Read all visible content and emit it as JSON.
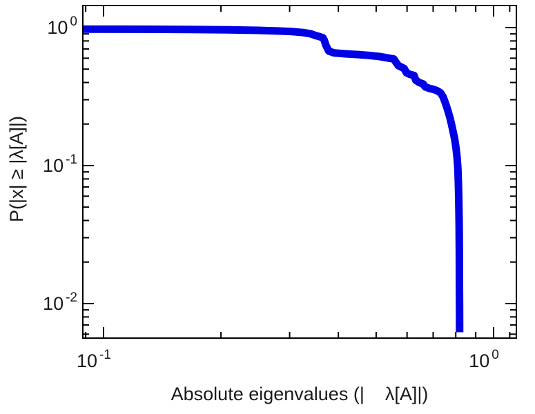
{
  "figure": {
    "background": "#ffffff",
    "text_color": "#1a1a1a",
    "frame_color": "#000000"
  },
  "chart_data": {
    "type": "line",
    "subtype": "empirical-ccdf",
    "scale": "log-log",
    "title": "",
    "xlabel": "Absolute eigenvalues (|    λ[A]|)",
    "ylabel": "P(|x| ≥ |λ[A]|)",
    "grid": false,
    "legend": null,
    "xlim": [
      0.0885,
      1.144
    ],
    "ylim": [
      0.00562,
      1.445
    ],
    "x_major_ticks": [
      {
        "value": 0.1,
        "base": "10",
        "exp": "-1"
      },
      {
        "value": 1.0,
        "base": "10",
        "exp": "0"
      }
    ],
    "x_minor_ticks": [
      0.09,
      0.2,
      0.3,
      0.4,
      0.5,
      0.6,
      0.7,
      0.8,
      0.9,
      1.1
    ],
    "y_major_ticks": [
      {
        "value": 1.0,
        "base": "10",
        "exp": "0"
      },
      {
        "value": 0.1,
        "base": "10",
        "exp": "-1"
      },
      {
        "value": 0.01,
        "base": "10",
        "exp": "-2"
      }
    ],
    "y_minor_ticks": [
      0.9,
      0.8,
      0.7,
      0.6,
      0.5,
      0.4,
      0.3,
      0.2,
      0.09,
      0.08,
      0.07,
      0.06,
      0.05,
      0.04,
      0.03,
      0.02,
      0.009,
      0.008,
      0.007,
      0.006
    ],
    "series": [
      {
        "name": "ccdf-absolute-eigenvalues",
        "color": "#0000e6",
        "line_width": 11,
        "points": [
          [
            0.0885,
            0.975
          ],
          [
            0.13,
            0.972
          ],
          [
            0.17,
            0.968
          ],
          [
            0.21,
            0.962
          ],
          [
            0.25,
            0.955
          ],
          [
            0.28,
            0.945
          ],
          [
            0.305,
            0.935
          ],
          [
            0.325,
            0.92
          ],
          [
            0.34,
            0.9
          ],
          [
            0.35,
            0.875
          ],
          [
            0.358,
            0.86
          ],
          [
            0.365,
            0.845
          ],
          [
            0.368,
            0.81
          ],
          [
            0.372,
            0.74
          ],
          [
            0.378,
            0.675
          ],
          [
            0.39,
            0.655
          ],
          [
            0.42,
            0.645
          ],
          [
            0.45,
            0.637
          ],
          [
            0.48,
            0.628
          ],
          [
            0.51,
            0.617
          ],
          [
            0.535,
            0.603
          ],
          [
            0.555,
            0.592
          ],
          [
            0.562,
            0.56
          ],
          [
            0.57,
            0.53
          ],
          [
            0.578,
            0.52
          ],
          [
            0.59,
            0.505
          ],
          [
            0.598,
            0.47
          ],
          [
            0.61,
            0.458
          ],
          [
            0.625,
            0.45
          ],
          [
            0.632,
            0.415
          ],
          [
            0.645,
            0.4
          ],
          [
            0.66,
            0.39
          ],
          [
            0.668,
            0.372
          ],
          [
            0.685,
            0.362
          ],
          [
            0.7,
            0.357
          ],
          [
            0.715,
            0.35
          ],
          [
            0.73,
            0.338
          ],
          [
            0.742,
            0.315
          ],
          [
            0.752,
            0.285
          ],
          [
            0.762,
            0.255
          ],
          [
            0.772,
            0.225
          ],
          [
            0.78,
            0.2
          ],
          [
            0.788,
            0.175
          ],
          [
            0.795,
            0.155
          ],
          [
            0.801,
            0.135
          ],
          [
            0.806,
            0.115
          ],
          [
            0.81,
            0.095
          ],
          [
            0.8125,
            0.075
          ],
          [
            0.8145,
            0.055
          ],
          [
            0.816,
            0.038
          ],
          [
            0.817,
            0.024
          ],
          [
            0.8175,
            0.014
          ],
          [
            0.818,
            0.009
          ],
          [
            0.8183,
            0.0062
          ]
        ]
      }
    ]
  }
}
